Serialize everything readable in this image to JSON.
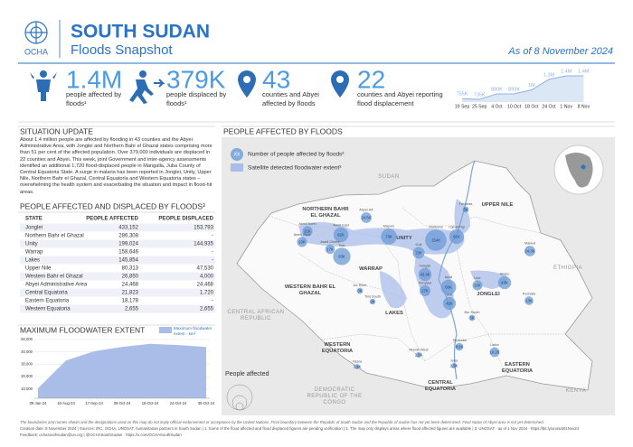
{
  "header": {
    "org": "OCHA",
    "title": "SOUTH SUDAN",
    "subtitle": "Floods Snapshot",
    "date": "As of 8 November 2024"
  },
  "key_figures": [
    {
      "value": "1.4M",
      "label": "people affected by floods¹"
    },
    {
      "value": "379K",
      "label": "people displaced by floods¹"
    },
    {
      "value": "43",
      "label": "counties and Abyei affected by floods"
    },
    {
      "value": "22",
      "label": "counties and Abyei reporting flood displacement"
    }
  ],
  "trend": {
    "x": [
      "19 Sep",
      "25 Sep",
      "4 Oct",
      "10 Oct",
      "18 Oct",
      "24 Oct",
      "1 Nov",
      "8 Nov"
    ],
    "values": [
      755000,
      735000,
      890000,
      893000,
      1000000,
      1300000,
      1400000,
      1400000
    ],
    "value_labels": [
      "755K",
      "735K",
      "890K",
      "893K",
      "1M",
      "1.3M",
      "1.4M",
      "1.4M"
    ]
  },
  "situation_update": {
    "title": "SITUATION UPDATE",
    "text": "About 1.4 million people are affected by flooding in 43 counties and the Abyei Administrative Area, with Jonglei and Northern Bahr el Ghazal states comprising more than 51 per cent of the affected population. Over 379,000 individuals are displaced in 22 counties and Abyei. This week, joint Government and inter-agency assessments identified an additional 1,720 flood-displaced people in Mangalla, Juba County of Central Equatoria State. A surge in malaria has been reported in Jonglei, Unity, Upper Nile, Northern Bahr el Ghazal, Central Equatoria and Western Equatoria states – overwhelming the health system and exacerbating the situation and impact in flood-hit areas."
  },
  "table": {
    "title": "PEOPLE AFFECTED AND DISPLACED BY FLOODS³",
    "columns": [
      "STATE",
      "PEOPLE AFFECTED",
      "PEOPLE DISPLACED"
    ],
    "rows": [
      [
        "Jonglei",
        "433,152",
        "153,793"
      ],
      [
        "Northern Bahr el Ghazal",
        "286,308",
        "-"
      ],
      [
        "Unity",
        "199,024",
        "144,935"
      ],
      [
        "Warrap",
        "158,646",
        "-"
      ],
      [
        "Lakes",
        "145,854",
        "-"
      ],
      [
        "Upper Nile",
        "80,313",
        "47,530"
      ],
      [
        "Western Bahr el Ghazal",
        "26,850",
        "4,000"
      ],
      [
        "Abyei Administrative Area",
        "24,468",
        "24,468"
      ],
      [
        "Central Equatoria",
        "21,823",
        "1,720"
      ],
      [
        "Eastern Equatoria",
        "18,178",
        "-"
      ],
      [
        "Western Equatoria",
        "2,655",
        "2,655"
      ]
    ]
  },
  "floodwater": {
    "type": "area",
    "title": "MAXIMUM FLOODWATER EXTENT",
    "legend": "Maximum floodwater extent - km²",
    "categories": [
      "09-Jan-24",
      "16-Aug-24",
      "17-Sep-24",
      "09-Oct-24",
      "16-Oct-24",
      "24-Oct-24",
      "30-Oct-24"
    ],
    "values": [
      10500,
      33000,
      40500,
      44000,
      46500,
      45500,
      44000
    ],
    "ylim": [
      2500,
      50000
    ],
    "yticks": [
      {
        "value": 10000,
        "label": "10,000"
      },
      {
        "value": 20000,
        "label": "20,000"
      },
      {
        "value": 30000,
        "label": "30,000"
      },
      {
        "value": 40000,
        "label": "40,000"
      },
      {
        "value": 50000,
        "label": "50,000"
      }
    ]
  },
  "map": {
    "title": "PEOPLE AFFECTED BY FLOODS",
    "legend": {
      "bubble_sample": "XX",
      "bubble": "Number of people affected by floods²",
      "flood": "Satellite detected floodwater extent³",
      "size": "People affected"
    },
    "countries": [
      "SUDAN",
      "ETHIOPIA",
      "CENTRAL AFRICAN REPUBLIC",
      "DEMOCRATIC REPUBLIC OF THE CONGO",
      "KENYA"
    ],
    "states": [
      "NORTHERN BAHR EL GHAZAL",
      "UPPER NILE",
      "UNITY",
      "WARRAP",
      "WESTERN BAHR EL GHAZAL",
      "LAKES",
      "JONGLEI",
      "WESTERN EQUATORIA",
      "CENTRAL EQUATORIA",
      "EASTERN EQUATORIA"
    ],
    "counties": [
      {
        "name": "Abyei AA",
        "value": 24468,
        "value_label": "24.5K"
      },
      {
        "name": "Aweil North",
        "value": 21000,
        "value_label": "21K"
      },
      {
        "name": "Aweil West",
        "value": 20000,
        "value_label": "20K"
      },
      {
        "name": "Aweil East",
        "value": 62000,
        "value_label": "62K"
      },
      {
        "name": "Aweil Centre",
        "value": 17000,
        "value_label": "17K"
      },
      {
        "name": "Twic",
        "value": 93000,
        "value_label": "93K"
      },
      {
        "name": "Mayom",
        "value": 73000,
        "value_label": "73K"
      },
      {
        "name": "Rubkona",
        "value": 154000,
        "value_label": "154K"
      },
      {
        "name": "Guit",
        "value": 33000,
        "value_label": "33K"
      },
      {
        "name": "Fangak",
        "value": 43900,
        "value_label": "43.9K"
      },
      {
        "name": "Panyijiar",
        "value": 27000,
        "value_label": "27K"
      },
      {
        "name": "Canal/Pigi",
        "value": 61000,
        "value_label": "61K"
      },
      {
        "name": "Fashoda",
        "value": 3000,
        "value_label": "3K"
      },
      {
        "name": "Maiwut",
        "value": 24300,
        "value_label": "24.3K"
      },
      {
        "name": "Ayod",
        "value": 66000,
        "value_label": "66K"
      },
      {
        "name": "Duk",
        "value": 42000,
        "value_label": "42K"
      },
      {
        "name": "Uror",
        "value": 20000,
        "value_label": "20K"
      },
      {
        "name": "Akobo",
        "value": 43000,
        "value_label": "43K"
      },
      {
        "name": "Pochalla",
        "value": 13000,
        "value_label": "13K"
      },
      {
        "name": "Bor South",
        "value": 3000,
        "value_label": "3K"
      },
      {
        "name": "Terekeka",
        "value": 8500,
        "value_label": "8.5K"
      },
      {
        "name": "Juba",
        "value": 1500,
        "value_label": "1.5K"
      },
      {
        "name": "Mundri West",
        "value": 1500,
        "value_label": "1.5K"
      },
      {
        "name": "Nzara",
        "value": 1100,
        "value_label": "1.1K"
      },
      {
        "name": "Lafon",
        "value": 18200,
        "value_label": "18.2K"
      },
      {
        "name": "Jur River",
        "value": 3000,
        "value_label": "3K"
      },
      {
        "name": "Tonj South",
        "value": 2000,
        "value_label": "2K"
      }
    ]
  },
  "footer": {
    "disclaimer": "The boundaries and names shown and the designations used on this map do not imply official endorsement or acceptance by the United Nations. Final boundary between the Republic of South Sudan and the Republic of Sudan has not yet been determined. Final status of Abyei area is not yet determined.",
    "sources": "Creation date: 8 November 2024 | Sources: IRC, OCHA, UNOSAT, humanitarian partners in South Sudan | 1. Some of the flood affected and flood displaced figures are pending verification | 2. The map only displays areas where flood affected figures are available | 3. UNOSAT - as of 1 Nov 2024 · https://bit.ly/unosat01Nov24",
    "feedback": "Feedback: ochasouthsudan@un.org | @OCHASouthSudan · https://x.com/OCHASouthSudan"
  }
}
